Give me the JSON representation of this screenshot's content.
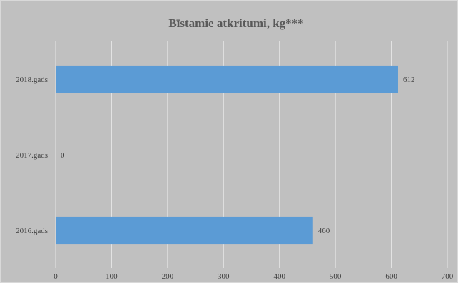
{
  "chart_data": {
    "type": "bar",
    "orientation": "horizontal",
    "title": "Bīstamie atkritumi, kg***",
    "categories": [
      "2016.gads",
      "2017.gads",
      "2018.gads"
    ],
    "values": [
      460,
      0,
      612
    ],
    "data_labels": [
      "460",
      "0",
      "612"
    ],
    "xlim": [
      0,
      700
    ],
    "x_ticks": [
      0,
      100,
      200,
      300,
      400,
      500,
      600,
      700
    ],
    "xlabel": "",
    "ylabel": "",
    "grid": true,
    "legend": "none",
    "colors": {
      "bar": "#5b9bd5",
      "background": "#c0c0c0",
      "gridline": "#e6e6e6",
      "text": "#404040",
      "title": "#595959"
    }
  }
}
